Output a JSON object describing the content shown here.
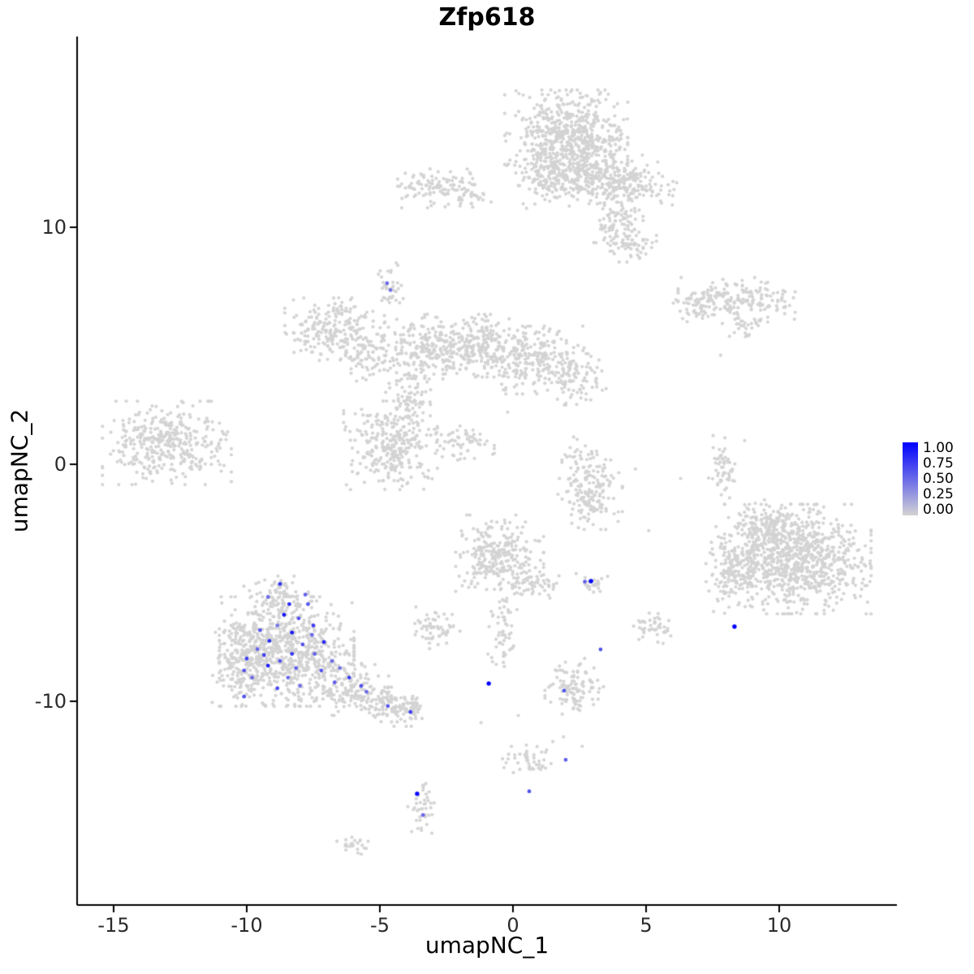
{
  "title": "Zfp618",
  "axes": {
    "x": {
      "label": "umapNC_1",
      "ticks": [
        "-15",
        "-10",
        "-5",
        "0",
        "5",
        "10"
      ]
    },
    "y": {
      "label": "umapNC_2",
      "ticks": [
        "10",
        "0",
        "-10"
      ]
    }
  },
  "legend": {
    "ticks": [
      "1.00",
      "0.75",
      "0.50",
      "0.25",
      "0.00"
    ],
    "color_high": "#0000FF",
    "color_low": "#D3D3D3"
  },
  "chart_data": {
    "type": "scatter",
    "title": "Zfp618",
    "xlabel": "umapNC_1",
    "ylabel": "umapNC_2",
    "xlim": [
      -16.4,
      14.4
    ],
    "ylim": [
      -18.6,
      18.0
    ],
    "grid": false,
    "legend_position": "right",
    "point_color_low": "#D3D3D3",
    "point_color_high": "#0000FF",
    "cluster_format": [
      "center_x",
      "center_y",
      "sd_x",
      "sd_y",
      "n_cells"
    ],
    "background_clusters": [
      [
        2.0,
        13.7,
        1.05,
        0.95,
        650
      ],
      [
        3.1,
        12.2,
        0.8,
        0.55,
        180
      ],
      [
        4.5,
        11.8,
        0.75,
        0.45,
        140
      ],
      [
        1.3,
        11.9,
        0.5,
        0.5,
        90
      ],
      [
        3.9,
        10.2,
        0.45,
        0.55,
        90
      ],
      [
        4.4,
        9.3,
        0.45,
        0.35,
        60
      ],
      [
        -2.9,
        11.7,
        0.65,
        0.4,
        100
      ],
      [
        -1.6,
        11.4,
        0.4,
        0.25,
        35
      ],
      [
        8.4,
        7.0,
        1.0,
        0.4,
        170
      ],
      [
        6.9,
        6.6,
        0.45,
        0.3,
        45
      ],
      [
        8.8,
        5.9,
        0.35,
        0.25,
        30
      ],
      [
        -4.6,
        7.5,
        0.3,
        0.45,
        35
      ],
      [
        -6.7,
        5.7,
        0.85,
        0.6,
        230
      ],
      [
        -5.3,
        4.5,
        0.55,
        0.45,
        80
      ],
      [
        -3.3,
        4.9,
        0.7,
        0.65,
        200
      ],
      [
        -1.3,
        5.0,
        0.8,
        0.6,
        240
      ],
      [
        0.8,
        4.4,
        0.85,
        0.65,
        230
      ],
      [
        2.4,
        3.6,
        0.5,
        0.5,
        90
      ],
      [
        -4.6,
        0.8,
        0.8,
        0.85,
        300
      ],
      [
        -3.9,
        2.9,
        0.4,
        0.6,
        70
      ],
      [
        -1.8,
        0.9,
        0.5,
        0.35,
        60
      ],
      [
        -13.0,
        0.9,
        1.1,
        0.8,
        380
      ],
      [
        2.9,
        -1.1,
        0.55,
        0.75,
        170
      ],
      [
        2.5,
        0.5,
        0.3,
        0.3,
        20
      ],
      [
        7.9,
        -0.1,
        0.25,
        0.6,
        55
      ],
      [
        10.7,
        -4.0,
        1.25,
        1.05,
        850
      ],
      [
        8.4,
        -4.5,
        0.55,
        0.85,
        170
      ],
      [
        9.4,
        -2.6,
        0.6,
        0.5,
        120
      ],
      [
        -0.5,
        -3.9,
        0.75,
        0.8,
        280
      ],
      [
        0.9,
        -5.1,
        0.4,
        0.3,
        45
      ],
      [
        -0.4,
        -7.3,
        0.25,
        0.85,
        55
      ],
      [
        -2.9,
        -6.9,
        0.45,
        0.4,
        60
      ],
      [
        -8.5,
        -7.9,
        1.15,
        1.05,
        750
      ],
      [
        -10.2,
        -8.4,
        0.5,
        0.75,
        160
      ],
      [
        -8.9,
        -5.6,
        0.55,
        0.4,
        90
      ],
      [
        -6.1,
        -9.5,
        0.65,
        0.5,
        140
      ],
      [
        -4.7,
        -10.1,
        0.5,
        0.35,
        90
      ],
      [
        -3.9,
        -10.4,
        0.3,
        0.3,
        50
      ],
      [
        3.0,
        -5.0,
        0.3,
        0.2,
        25
      ],
      [
        5.3,
        -6.9,
        0.35,
        0.3,
        45
      ],
      [
        2.3,
        -9.4,
        0.5,
        0.55,
        110
      ],
      [
        0.6,
        -12.4,
        0.45,
        0.3,
        45
      ],
      [
        -3.4,
        -14.4,
        0.25,
        0.55,
        40
      ],
      [
        -6.1,
        -16.1,
        0.3,
        0.2,
        25
      ]
    ],
    "outlier_points": [
      [
        7.8,
        4.6
      ],
      [
        5.1,
        -2.8
      ],
      [
        4.6,
        -0.2
      ],
      [
        -0.2,
        2.2
      ],
      [
        1.5,
        -11.7
      ],
      [
        2.6,
        -11.9
      ],
      [
        -1.2,
        -10.9
      ],
      [
        0.2,
        -10.6
      ],
      [
        6.3,
        -0.6
      ],
      [
        8.7,
        1.0
      ],
      [
        -0.06,
        -11.9
      ],
      [
        1.9,
        -11.5
      ]
    ],
    "expressing_cell_format": [
      "x",
      "y",
      "expression_0_to_1"
    ],
    "expressing_cells": [
      [
        -8.75,
        -5.05,
        0.75
      ],
      [
        -9.2,
        -5.6,
        0.5
      ],
      [
        -8.4,
        -5.9,
        0.8
      ],
      [
        -7.8,
        -5.5,
        0.55
      ],
      [
        -8.6,
        -6.35,
        0.9
      ],
      [
        -8.05,
        -6.5,
        0.6
      ],
      [
        -7.5,
        -6.8,
        0.7
      ],
      [
        -9.5,
        -7.0,
        0.6
      ],
      [
        -9.15,
        -7.45,
        0.8
      ],
      [
        -9.6,
        -7.8,
        0.5
      ],
      [
        -10.0,
        -8.2,
        0.7
      ],
      [
        -10.1,
        -8.7,
        0.6
      ],
      [
        -9.8,
        -9.0,
        0.5
      ],
      [
        -9.2,
        -8.5,
        0.85
      ],
      [
        -8.75,
        -8.3,
        0.6
      ],
      [
        -8.3,
        -8.0,
        0.75
      ],
      [
        -7.9,
        -7.6,
        0.6
      ],
      [
        -7.45,
        -8.0,
        0.55
      ],
      [
        -7.1,
        -7.5,
        0.8
      ],
      [
        -8.45,
        -9.0,
        0.5
      ],
      [
        -8.85,
        -9.45,
        0.65
      ],
      [
        -8.0,
        -9.35,
        0.45
      ],
      [
        -7.2,
        -8.7,
        0.6
      ],
      [
        -6.8,
        -8.3,
        0.5
      ],
      [
        -6.15,
        -9.0,
        0.7
      ],
      [
        -5.7,
        -9.35,
        0.6
      ],
      [
        -5.5,
        -9.6,
        0.5
      ],
      [
        -10.1,
        -9.8,
        0.6
      ],
      [
        -8.3,
        -7.1,
        0.9
      ],
      [
        -8.85,
        -6.8,
        0.45
      ],
      [
        -7.7,
        -5.9,
        0.6
      ],
      [
        -6.7,
        -9.2,
        0.55
      ],
      [
        -9.35,
        -8.05,
        0.7
      ],
      [
        -8.15,
        -8.6,
        0.55
      ],
      [
        -7.55,
        -7.2,
        0.5
      ],
      [
        -6.5,
        -8.6,
        0.45
      ],
      [
        -4.7,
        -10.2,
        0.6
      ],
      [
        -3.85,
        -10.45,
        0.7
      ],
      [
        -4.73,
        7.64,
        0.5
      ],
      [
        -4.6,
        7.35,
        0.45
      ],
      [
        2.93,
        -4.93,
        1.0
      ],
      [
        2.7,
        -4.95,
        0.55
      ],
      [
        8.32,
        -6.85,
        1.0
      ],
      [
        -0.91,
        -9.25,
        1.0
      ],
      [
        1.92,
        -9.55,
        0.6
      ],
      [
        3.29,
        -7.81,
        0.6
      ],
      [
        1.98,
        -12.47,
        0.55
      ],
      [
        0.61,
        -13.8,
        0.6
      ],
      [
        -3.6,
        -13.9,
        0.95
      ],
      [
        -3.38,
        -14.8,
        0.5
      ]
    ]
  }
}
